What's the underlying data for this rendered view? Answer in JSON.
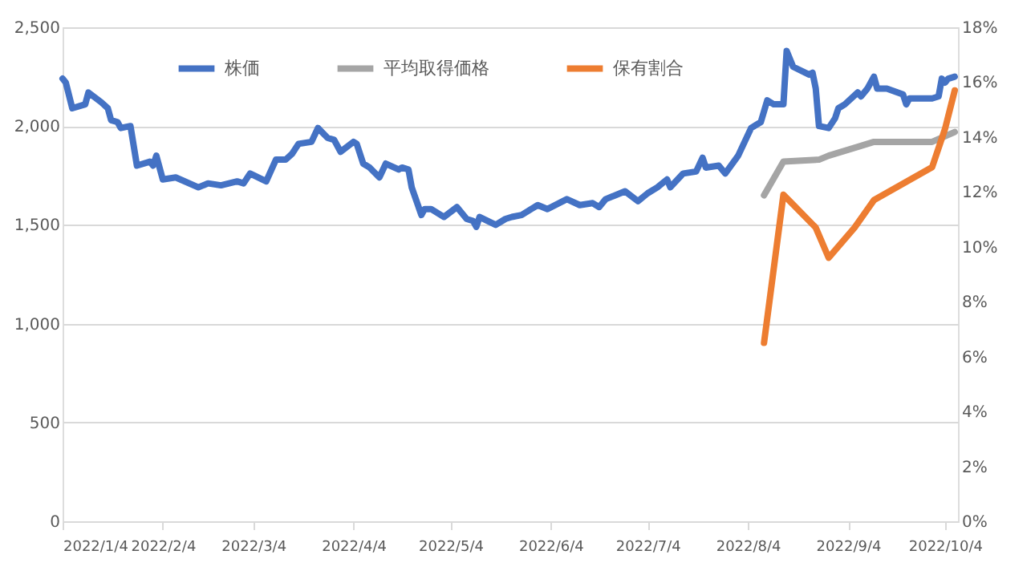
{
  "chart_data": {
    "type": "line",
    "legend": "top",
    "grid": "y",
    "line_style": "solid",
    "marker": "none",
    "xlim": [
      "2022-01-04",
      "2022-10-08"
    ],
    "xticks": [
      {
        "value": "2022-01-04",
        "label": "2022/1/4"
      },
      {
        "value": "2022-02-04",
        "label": "2022/2/4"
      },
      {
        "value": "2022-03-04",
        "label": "2022/3/4"
      },
      {
        "value": "2022-04-04",
        "label": "2022/4/4"
      },
      {
        "value": "2022-05-04",
        "label": "2022/5/4"
      },
      {
        "value": "2022-06-04",
        "label": "2022/6/4"
      },
      {
        "value": "2022-07-04",
        "label": "2022/7/4"
      },
      {
        "value": "2022-08-04",
        "label": "2022/8/4"
      },
      {
        "value": "2022-09-04",
        "label": "2022/9/4"
      },
      {
        "value": "2022-10-04",
        "label": "2022/10/4"
      }
    ],
    "ylim": [
      0,
      2500
    ],
    "yticks": [
      0,
      500,
      {
        "value": 1000,
        "label": "1,000"
      },
      {
        "value": 1500,
        "label": "1,500"
      },
      {
        "value": 2000,
        "label": "2,000"
      },
      {
        "value": 2500,
        "label": "2,500"
      }
    ],
    "y2lim": [
      0,
      18
    ],
    "y2ticks": [
      {
        "value": 0,
        "label": "0%"
      },
      {
        "value": 2,
        "label": "2%"
      },
      {
        "value": 4,
        "label": "4%"
      },
      {
        "value": 6,
        "label": "6%"
      },
      {
        "value": 8,
        "label": "8%"
      },
      {
        "value": 10,
        "label": "10%"
      },
      {
        "value": 12,
        "label": "12%"
      },
      {
        "value": 14,
        "label": "14%"
      },
      {
        "value": 16,
        "label": "16%"
      },
      {
        "value": 18,
        "label": "18%"
      }
    ],
    "series": [
      {
        "name": "株価",
        "color": "#4472c4",
        "x": [
          "2022-01-04",
          "2022-01-05",
          "2022-01-07",
          "2022-01-11",
          "2022-01-12",
          "2022-01-16",
          "2022-01-18",
          "2022-01-19",
          "2022-01-21",
          "2022-01-22",
          "2022-01-25",
          "2022-01-27",
          "2022-01-31",
          "2022-02-01",
          "2022-02-02",
          "2022-02-04",
          "2022-02-08",
          "2022-02-15",
          "2022-02-18",
          "2022-02-22",
          "2022-02-27",
          "2022-03-01",
          "2022-03-03",
          "2022-03-08",
          "2022-03-11",
          "2022-03-14",
          "2022-03-16",
          "2022-03-18",
          "2022-03-22",
          "2022-03-24",
          "2022-03-27",
          "2022-03-29",
          "2022-03-31",
          "2022-04-04",
          "2022-04-05",
          "2022-04-07",
          "2022-04-09",
          "2022-04-12",
          "2022-04-14",
          "2022-04-18",
          "2022-04-19",
          "2022-04-21",
          "2022-04-22",
          "2022-04-25",
          "2022-04-26",
          "2022-04-28",
          "2022-05-02",
          "2022-05-06",
          "2022-05-09",
          "2022-05-11",
          "2022-05-12",
          "2022-05-13",
          "2022-05-18",
          "2022-05-21",
          "2022-05-23",
          "2022-05-26",
          "2022-05-29",
          "2022-05-31",
          "2022-06-03",
          "2022-06-09",
          "2022-06-13",
          "2022-06-17",
          "2022-06-19",
          "2022-06-21",
          "2022-06-24",
          "2022-06-27",
          "2022-07-01",
          "2022-07-04",
          "2022-07-07",
          "2022-07-10",
          "2022-07-11",
          "2022-07-15",
          "2022-07-19",
          "2022-07-21",
          "2022-07-22",
          "2022-07-26",
          "2022-07-28",
          "2022-08-01",
          "2022-08-05",
          "2022-08-08",
          "2022-08-10",
          "2022-08-12",
          "2022-08-15",
          "2022-08-16",
          "2022-08-18",
          "2022-08-23",
          "2022-08-24",
          "2022-08-25",
          "2022-08-26",
          "2022-08-29",
          "2022-08-31",
          "2022-09-01",
          "2022-09-03",
          "2022-09-07",
          "2022-09-08",
          "2022-09-10",
          "2022-09-12",
          "2022-09-13",
          "2022-09-16",
          "2022-09-21",
          "2022-09-22",
          "2022-09-23",
          "2022-09-28",
          "2022-09-30",
          "2022-10-02",
          "2022-10-03",
          "2022-10-04",
          "2022-10-05",
          "2022-10-07"
        ],
        "values": [
          2240,
          2220,
          2090,
          2110,
          2170,
          2120,
          2090,
          2030,
          2020,
          1990,
          2000,
          1800,
          1820,
          1800,
          1850,
          1730,
          1740,
          1690,
          1710,
          1700,
          1720,
          1710,
          1760,
          1720,
          1830,
          1830,
          1860,
          1910,
          1920,
          1990,
          1940,
          1930,
          1870,
          1920,
          1910,
          1810,
          1790,
          1740,
          1810,
          1780,
          1790,
          1780,
          1690,
          1550,
          1580,
          1580,
          1540,
          1590,
          1530,
          1520,
          1490,
          1540,
          1500,
          1530,
          1540,
          1550,
          1580,
          1600,
          1580,
          1630,
          1600,
          1610,
          1590,
          1630,
          1650,
          1670,
          1620,
          1660,
          1690,
          1730,
          1690,
          1760,
          1770,
          1840,
          1790,
          1800,
          1760,
          1850,
          1990,
          2020,
          2130,
          2110,
          2110,
          2380,
          2300,
          2260,
          2270,
          2190,
          2000,
          1990,
          2040,
          2090,
          2110,
          2170,
          2150,
          2190,
          2250,
          2190,
          2190,
          2160,
          2110,
          2140,
          2140,
          2140,
          2150,
          2240,
          2220,
          2240,
          2250
        ]
      },
      {
        "name": "平均取得価格",
        "color": "#a5a5a5",
        "x": [
          "2022-08-09",
          "2022-08-15",
          "2022-08-26",
          "2022-08-29",
          "2022-09-08",
          "2022-09-12",
          "2022-09-30",
          "2022-10-07"
        ],
        "values": [
          1650,
          1820,
          1830,
          1850,
          1900,
          1920,
          1920,
          1970
        ]
      },
      {
        "name": "保有割合",
        "color": "#ed7d31",
        "axis": "y2",
        "x": [
          "2022-08-09",
          "2022-08-15",
          "2022-08-25",
          "2022-08-29",
          "2022-09-06",
          "2022-09-12",
          "2022-09-30",
          "2022-10-04",
          "2022-10-07"
        ],
        "values": [
          6.5,
          11.9,
          10.7,
          9.6,
          10.7,
          11.7,
          12.9,
          14.3,
          15.7
        ]
      }
    ]
  }
}
